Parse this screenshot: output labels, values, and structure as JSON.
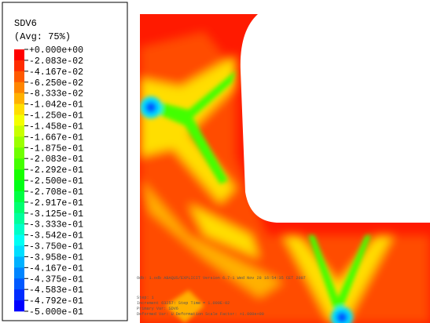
{
  "legend": {
    "title": "SDV6",
    "subtitle": "(Avg: 75%)",
    "labels": [
      "+0.000e+00",
      "-2.083e-02",
      "-4.167e-02",
      "-6.250e-02",
      "-8.333e-02",
      "-1.042e-01",
      "-1.250e-01",
      "-1.458e-01",
      "-1.667e-01",
      "-1.875e-01",
      "-2.083e-01",
      "-2.292e-01",
      "-2.500e-01",
      "-2.708e-01",
      "-2.917e-01",
      "-3.125e-01",
      "-3.333e-01",
      "-3.542e-01",
      "-3.750e-01",
      "-3.958e-01",
      "-4.167e-01",
      "-4.375e-01",
      "-4.583e-01",
      "-4.792e-01",
      "-5.000e-01"
    ],
    "colors": [
      "#ff0000",
      "#ff2c00",
      "#ff5900",
      "#ff8500",
      "#ffb100",
      "#ffde00",
      "#f4ff00",
      "#c8ff00",
      "#9bff00",
      "#6fff00",
      "#43ff00",
      "#16ff00",
      "#00ff16",
      "#00ff43",
      "#00ff6f",
      "#00ff9b",
      "#00ffc8",
      "#00fff4",
      "#00deff",
      "#00b1ff",
      "#0085ff",
      "#0059ff",
      "#002cff",
      "#0000ff"
    ]
  },
  "footer": {
    "lines": [
      "Odb: 1.odb    ABAQUS/EXPLICIT Version 6.7-1    Wed Nov 28 16:54:35 CET 2007",
      "Step: 1",
      "Increment 63257: Step Time = 1.000E-02",
      "Primary Var: SDV6",
      "Deformed Var: U   Deformation Scale Factor: +1.000e+00"
    ]
  }
}
